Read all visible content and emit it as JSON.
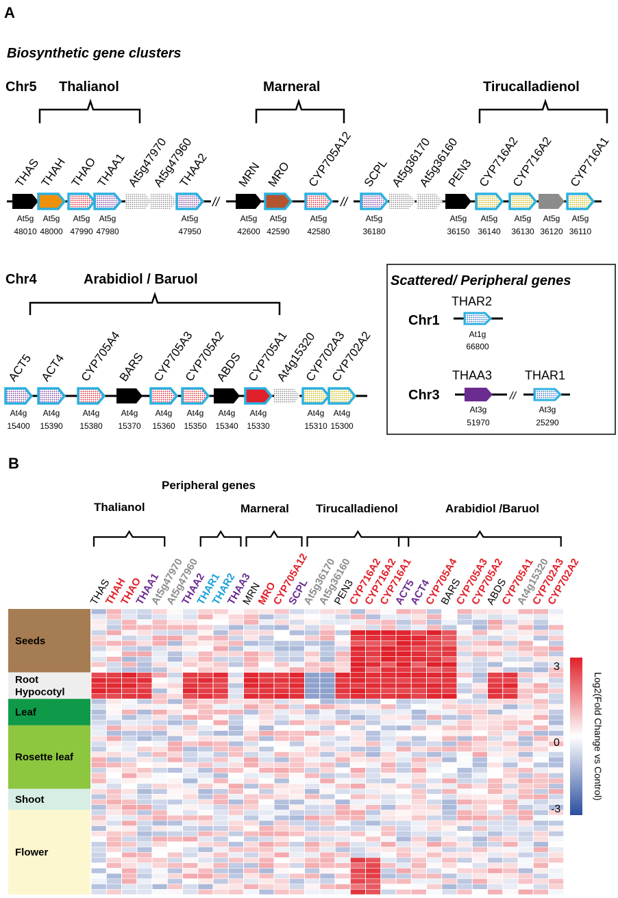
{
  "panel_a": {
    "label": "A",
    "section_title": "Biosynthetic gene clusters",
    "chr5": {
      "label": "Chr5",
      "clusters": [
        "Thalianol",
        "Marneral",
        "Tirucalladienol"
      ],
      "groups": [
        {
          "genes": [
            {
              "name": "THAS",
              "id1": "At5g",
              "id2": "48010",
              "fill": "black"
            },
            {
              "name": "THAH",
              "id1": "At5g",
              "id2": "48000",
              "fill": "orange"
            },
            {
              "name": "THAO",
              "id1": "At5g",
              "id2": "47990",
              "fill": "red-dot"
            },
            {
              "name": "THAA1",
              "id1": "At5g",
              "id2": "47980",
              "fill": "purple-dot"
            },
            {
              "name": "At5g47970",
              "id1": "",
              "id2": "",
              "fill": "grey-dot"
            },
            {
              "name": "At5g47960",
              "id1": "",
              "id2": "",
              "fill": "grey-dot"
            },
            {
              "name": "THAA2",
              "id1": "At5g",
              "id2": "47950",
              "fill": "purple-dot"
            }
          ]
        },
        {
          "genes": [
            {
              "name": "MRN",
              "id1": "At5g",
              "id2": "42600",
              "fill": "black"
            },
            {
              "name": "MRO",
              "id1": "At5g",
              "id2": "42590",
              "fill": "brown"
            },
            {
              "name": "CYP705A12",
              "id1": "At5g",
              "id2": "42580",
              "fill": "red-dot"
            }
          ]
        },
        {
          "genes": [
            {
              "name": "SCPL",
              "id1": "At5g",
              "id2": "36180",
              "fill": "purple-dot"
            },
            {
              "name": "At5g36170",
              "id1": "",
              "id2": "",
              "fill": "grey-dot"
            },
            {
              "name": "At5g36160",
              "id1": "",
              "id2": "",
              "fill": "grey-dot"
            },
            {
              "name": "PEN3",
              "id1": "At5g",
              "id2": "36150",
              "fill": "black"
            },
            {
              "name": "CYP716A2",
              "id1": "At5g",
              "id2": "36140",
              "fill": "yellow-dot"
            },
            {
              "name": "CYP716A2",
              "id1": "At5g",
              "id2": "36130",
              "fill": "yellow-dot"
            },
            {
              "name": "",
              "id1": "At5g",
              "id2": "36120",
              "fill": "grey"
            },
            {
              "name": "CYP716A1",
              "id1": "At5g",
              "id2": "36110",
              "fill": "yellow-dot"
            }
          ]
        }
      ]
    },
    "chr4": {
      "label": "Chr4",
      "cluster": "Arabidiol / Baruol",
      "genes": [
        {
          "name": "ACT5",
          "id1": "At4g",
          "id2": "15400",
          "fill": "purple-dot"
        },
        {
          "name": "ACT4",
          "id1": "At4g",
          "id2": "15390",
          "fill": "purple-dot"
        },
        {
          "name": "CYP705A4",
          "id1": "At4g",
          "id2": "15380",
          "fill": "red-dot"
        },
        {
          "name": "BARS",
          "id1": "At4g",
          "id2": "15370",
          "fill": "black"
        },
        {
          "name": "CYP705A3",
          "id1": "At4g",
          "id2": "15360",
          "fill": "red-dot"
        },
        {
          "name": "CYP705A2",
          "id1": "At4g",
          "id2": "15350",
          "fill": "red-dot"
        },
        {
          "name": "ABDS",
          "id1": "At4g",
          "id2": "15340",
          "fill": "black"
        },
        {
          "name": "CYP705A1",
          "id1": "At4g",
          "id2": "15330",
          "fill": "red"
        },
        {
          "name": "At4g15320",
          "id1": "",
          "id2": "",
          "fill": "grey-dot"
        },
        {
          "name": "CYP702A3",
          "id1": "At4g",
          "id2": "15310",
          "fill": "yellow-dot"
        },
        {
          "name": "CYP702A2",
          "id1": "At4g",
          "id2": "15300",
          "fill": "yellow-dot"
        }
      ]
    },
    "scattered": {
      "title": "Scattered/ Peripheral genes",
      "chr1": {
        "label": "Chr1",
        "gene": "THAR2",
        "id1": "At1g",
        "id2": "66800"
      },
      "chr3": {
        "label": "Chr3",
        "gene_a": "THAA3",
        "id_a1": "At3g",
        "id_a2": "51970",
        "gene_b": "THAR1",
        "id_b1": "At3g",
        "id_b2": "25290"
      }
    }
  },
  "panel_b": {
    "label": "B",
    "group_labels": {
      "thalianol": "Thalianol",
      "peripheral": "Peripheral genes",
      "marneral": "Marneral",
      "tirucalladienol": "Tirucalladienol",
      "arabidiol": "Arabidiol /Baruol"
    },
    "columns": [
      {
        "name": "THAS",
        "color": "#000000"
      },
      {
        "name": "THAH",
        "color": "#e0202a"
      },
      {
        "name": "THAO",
        "color": "#e0202a"
      },
      {
        "name": "THAA1",
        "color": "#6a2c91"
      },
      {
        "name": "At5g47970",
        "color": "#8c8c8c"
      },
      {
        "name": "At5g47960",
        "color": "#8c8c8c"
      },
      {
        "name": "THAA2",
        "color": "#6a2c91"
      },
      {
        "name": "THAR1",
        "color": "#1a9fd9"
      },
      {
        "name": "THAR2",
        "color": "#1a9fd9"
      },
      {
        "name": "THAA3",
        "color": "#6a2c91"
      },
      {
        "name": "MRN",
        "color": "#000000"
      },
      {
        "name": "MRO",
        "color": "#e0202a"
      },
      {
        "name": "CYP705A12",
        "color": "#e0202a"
      },
      {
        "name": "SCPL",
        "color": "#6a2c91"
      },
      {
        "name": "At5g36170",
        "color": "#8c8c8c"
      },
      {
        "name": "At5g36160",
        "color": "#8c8c8c"
      },
      {
        "name": "PEN3",
        "color": "#000000"
      },
      {
        "name": "CYP716A2",
        "color": "#e0202a"
      },
      {
        "name": "CYP716A2",
        "color": "#e0202a"
      },
      {
        "name": "CYP716A1",
        "color": "#e0202a"
      },
      {
        "name": "ACT5",
        "color": "#6a2c91"
      },
      {
        "name": "ACT4",
        "color": "#6a2c91"
      },
      {
        "name": "CYP705A4",
        "color": "#e0202a"
      },
      {
        "name": "BARS",
        "color": "#000000"
      },
      {
        "name": "CYP705A3",
        "color": "#e0202a"
      },
      {
        "name": "CYP705A2",
        "color": "#e0202a"
      },
      {
        "name": "ABDS",
        "color": "#000000"
      },
      {
        "name": "CYP705A1",
        "color": "#e0202a"
      },
      {
        "name": "At4g15320",
        "color": "#8c8c8c"
      },
      {
        "name": "CYP702A3",
        "color": "#e0202a"
      },
      {
        "name": "CYP702A2",
        "color": "#e0202a"
      }
    ],
    "tissues": [
      {
        "name": "Seeds",
        "rows": 12,
        "color": "#a67c52"
      },
      {
        "name": "Root\nHypocotyl",
        "rows": 5,
        "color": "#eeeeee"
      },
      {
        "name": "Leaf",
        "rows": 5,
        "color": "#0f9a49"
      },
      {
        "name": "Rosette leaf",
        "rows": 12,
        "color": "#8dc63f"
      },
      {
        "name": "Shoot",
        "rows": 4,
        "color": "#d6eee3"
      },
      {
        "name": "Flower",
        "rows": 16,
        "color": "#fdf7cf"
      }
    ],
    "legend": {
      "max": "3",
      "mid": "0",
      "min": "-3",
      "title": "Log2(Fold Change vs Control)"
    }
  },
  "colors": {
    "gene_outline": "#2bb0e0",
    "red": "#e0202a",
    "blue": "#2b4ea0",
    "black": "#000000"
  }
}
